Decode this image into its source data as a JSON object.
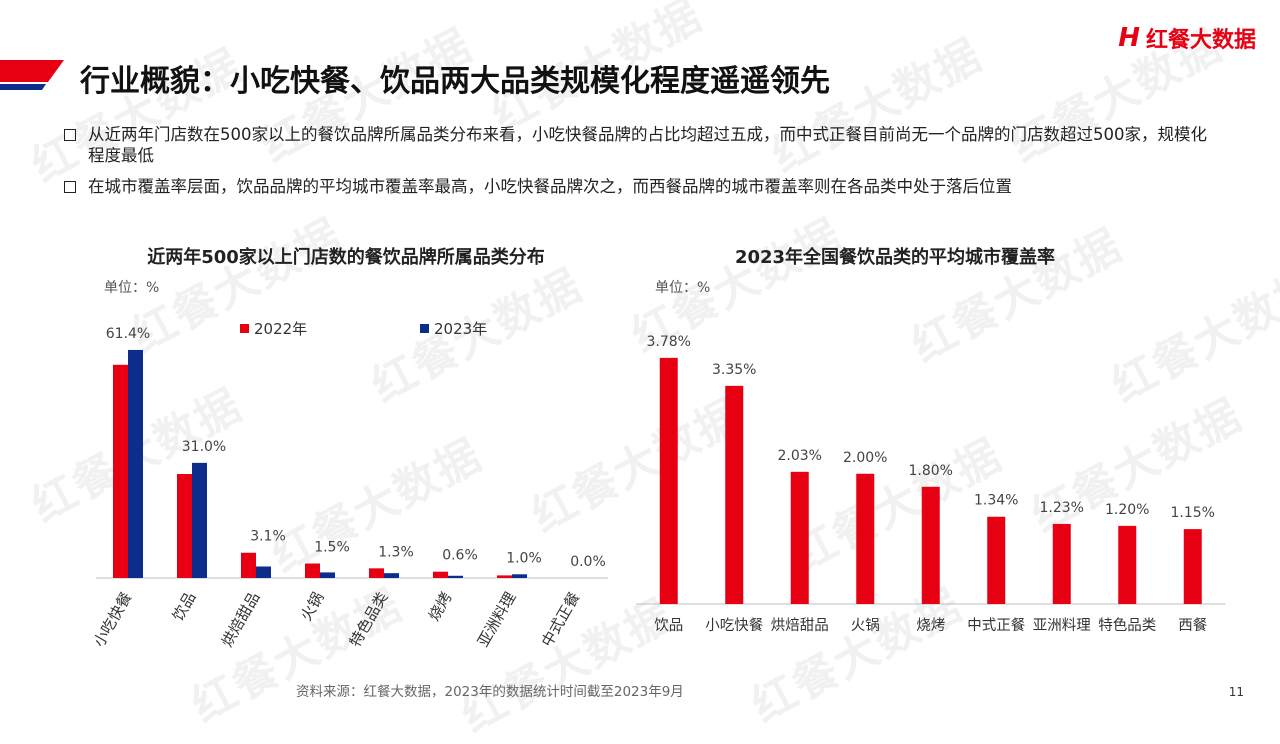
{
  "brand": {
    "logo_mark": "H",
    "name": "红餐大数据",
    "accent": "#e60012",
    "navy": "#0d2d8c",
    "watermark": "红餐大数据"
  },
  "page": {
    "title": "行业概貌：小吃快餐、饮品两大品类规模化程度遥遥领先",
    "bullets": [
      "从近两年门店数在500家以上的餐饮品牌所属品类分布来看，小吃快餐品牌的占比均超过五成，而中式正餐目前尚无一个品牌的门店数超过500家，规模化程度最低",
      "在城市覆盖率层面，饮品品牌的平均城市覆盖率最高，小吃快餐品牌次之，而西餐品牌的城市覆盖率则在各品类中处于落后位置"
    ],
    "source": "资料来源：红餐大数据，2023年的数据统计时间截至2023年9月",
    "page_number": "11"
  },
  "chart_data": [
    {
      "type": "bar",
      "title": "近两年500家以上门店数的餐饮品牌所属品类分布",
      "unit": "单位：%",
      "categories": [
        "小吃快餐",
        "饮品",
        "烘焙甜品",
        "火锅",
        "特色品类",
        "烧烤",
        "亚洲料理",
        "中式正餐"
      ],
      "series": [
        {
          "name": "2022年",
          "color": "#e60012",
          "values": [
            57.4,
            28.0,
            6.8,
            3.9,
            2.6,
            1.7,
            0.7,
            0.0
          ]
        },
        {
          "name": "2023年",
          "color": "#0d2d8c",
          "values": [
            61.4,
            31.0,
            3.1,
            1.5,
            1.3,
            0.6,
            1.0,
            0.0
          ]
        }
      ],
      "data_labels": [
        "61.4%",
        "31.0%",
        "3.1%",
        "1.5%",
        "1.3%",
        "0.6%",
        "1.0%",
        "0.0%"
      ],
      "ylim": [
        0,
        70
      ],
      "legend_position": "top-right"
    },
    {
      "type": "bar",
      "title": "2023年全国餐饮品类的平均城市覆盖率",
      "unit": "单位：%",
      "categories": [
        "饮品",
        "小吃快餐",
        "烘焙甜品",
        "火锅",
        "烧烤",
        "中式正餐",
        "亚洲料理",
        "特色品类",
        "西餐"
      ],
      "values": [
        3.78,
        3.35,
        2.03,
        2.0,
        1.8,
        1.34,
        1.23,
        1.2,
        1.15
      ],
      "data_labels": [
        "3.78%",
        "3.35%",
        "2.03%",
        "2.00%",
        "1.80%",
        "1.34%",
        "1.23%",
        "1.20%",
        "1.15%"
      ],
      "color": "#e60012",
      "ylim": [
        0,
        4.3
      ]
    }
  ]
}
